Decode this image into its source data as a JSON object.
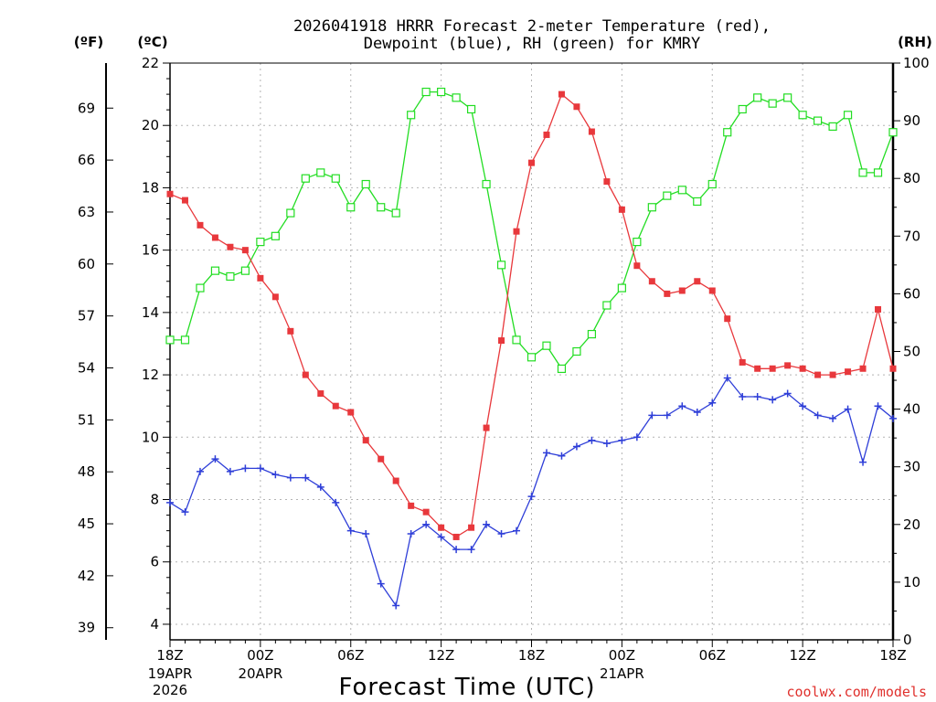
{
  "chart_data": {
    "type": "line",
    "title_line1": "2026041918 HRRR Forecast 2-meter Temperature (red),",
    "title_line2": "Dewpoint (blue), RH (green) for KMRY",
    "xlabel": "Forecast Time (UTC)",
    "credit": "coolwx.com/models",
    "units": {
      "fahrenheit": "(ºF)",
      "celsius": "(ºC)",
      "rh": "(RH)"
    },
    "x_range_hours": [
      0,
      48
    ],
    "celsius_axis": {
      "range": [
        3.5,
        22
      ],
      "ticks": [
        "4",
        "6",
        "8",
        "10",
        "12",
        "14",
        "16",
        "18",
        "20",
        "22"
      ]
    },
    "fahrenheit_axis": {
      "ticks": [
        "39",
        "42",
        "45",
        "48",
        "51",
        "54",
        "57",
        "60",
        "63",
        "66",
        "69"
      ]
    },
    "rh_axis": {
      "range": [
        0,
        100
      ],
      "ticks": [
        "0",
        "10",
        "20",
        "30",
        "40",
        "50",
        "60",
        "70",
        "80",
        "90",
        "100"
      ]
    },
    "x_ticks": [
      {
        "hour": 0,
        "label": "18Z",
        "sub1": "19APR",
        "sub2": "2026"
      },
      {
        "hour": 6,
        "label": "00Z",
        "sub1": "20APR",
        "sub2": ""
      },
      {
        "hour": 12,
        "label": "06Z",
        "sub1": "",
        "sub2": ""
      },
      {
        "hour": 18,
        "label": "12Z",
        "sub1": "",
        "sub2": ""
      },
      {
        "hour": 24,
        "label": "18Z",
        "sub1": "",
        "sub2": ""
      },
      {
        "hour": 30,
        "label": "00Z",
        "sub1": "21APR",
        "sub2": ""
      },
      {
        "hour": 36,
        "label": "06Z",
        "sub1": "",
        "sub2": ""
      },
      {
        "hour": 42,
        "label": "12Z",
        "sub1": "",
        "sub2": ""
      },
      {
        "hour": 48,
        "label": "18Z",
        "sub1": "",
        "sub2": ""
      }
    ],
    "series": [
      {
        "name": "Temperature (C)",
        "color": "#e8383c",
        "marker": "filled-square",
        "axis": "celsius",
        "values": [
          17.8,
          17.6,
          16.8,
          16.4,
          16.1,
          16.0,
          15.1,
          14.5,
          13.4,
          12.0,
          11.4,
          11.0,
          10.8,
          9.9,
          9.3,
          8.6,
          7.8,
          7.6,
          7.1,
          6.8,
          7.1,
          10.3,
          13.1,
          16.6,
          18.8,
          19.7,
          21.0,
          20.6,
          19.8,
          18.2,
          17.3,
          15.5,
          15.0,
          14.6,
          14.7,
          15.0,
          14.7,
          13.8,
          12.4,
          12.2,
          12.2,
          12.3,
          12.2,
          12.0,
          12.0,
          12.1,
          12.2,
          14.1,
          12.2
        ]
      },
      {
        "name": "Dewpoint (C)",
        "color": "#2e3ed8",
        "marker": "plus",
        "axis": "celsius",
        "values": [
          7.9,
          7.6,
          8.9,
          9.3,
          8.9,
          9.0,
          9.0,
          8.8,
          8.7,
          8.7,
          8.4,
          7.9,
          7.0,
          6.9,
          5.3,
          4.6,
          6.9,
          7.2,
          6.8,
          6.4,
          6.4,
          7.2,
          6.9,
          7.0,
          8.1,
          9.5,
          9.4,
          9.7,
          9.9,
          9.8,
          9.9,
          10.0,
          10.7,
          10.7,
          11.0,
          10.8,
          11.1,
          11.9,
          11.3,
          11.3,
          11.2,
          11.4,
          11.0,
          10.7,
          10.6,
          10.9,
          9.2,
          11.0,
          10.6
        ]
      },
      {
        "name": "RH (%)",
        "color": "#22dd22",
        "marker": "open-square",
        "axis": "rh",
        "values": [
          52,
          52,
          61,
          64,
          63,
          64,
          69,
          70,
          74,
          80,
          81,
          80,
          75,
          79,
          75,
          74,
          91,
          95,
          95,
          94,
          92,
          79,
          65,
          52,
          49,
          51,
          47,
          50,
          53,
          58,
          61,
          69,
          75,
          77,
          78,
          76,
          79,
          88,
          92,
          94,
          93,
          94,
          91,
          90,
          89,
          91,
          81,
          81,
          88
        ]
      }
    ]
  }
}
